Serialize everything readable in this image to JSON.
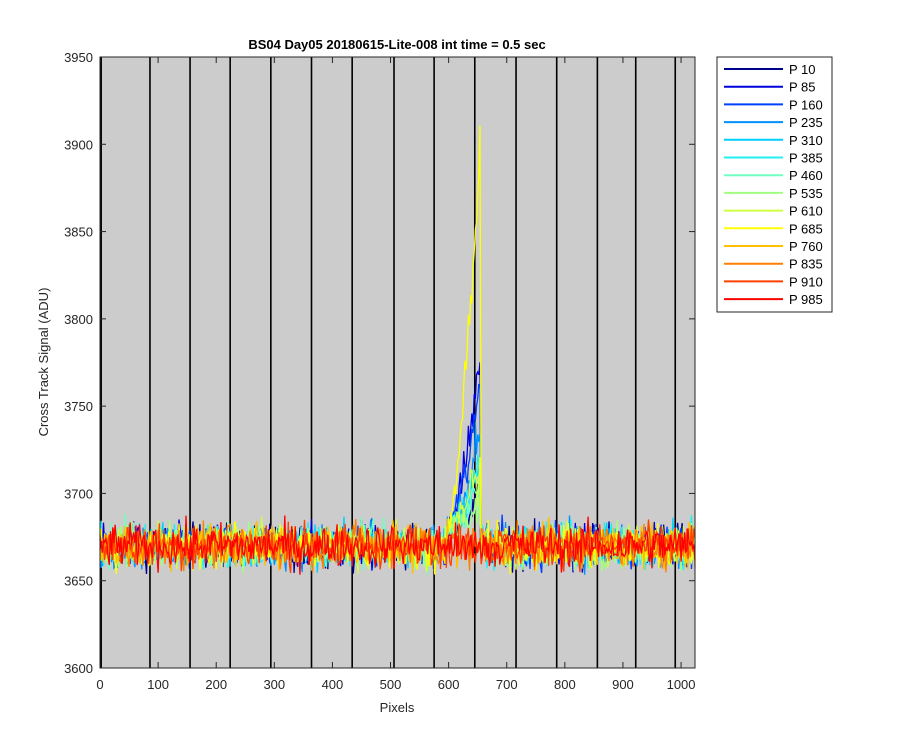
{
  "chart_data": {
    "type": "line",
    "title": "BS04 Day05 20180615-Lite-008 int time = 0.5 sec",
    "xlabel": "Pixels",
    "ylabel": "Cross Track Signal (ADU)",
    "xlim": [
      0,
      1024
    ],
    "ylim": [
      3600,
      3950
    ],
    "x_ticks": [
      0,
      100,
      200,
      300,
      400,
      500,
      600,
      700,
      800,
      900,
      1000
    ],
    "y_ticks": [
      3600,
      3650,
      3700,
      3750,
      3800,
      3850,
      3900,
      3950
    ],
    "x_tick_labels": [
      "0",
      "100",
      "200",
      "300",
      "400",
      "500",
      "600",
      "700",
      "800",
      "900",
      "1000"
    ],
    "y_tick_labels": [
      "3600",
      "3650",
      "3700",
      "3750",
      "3800",
      "3850",
      "3900",
      "3950"
    ],
    "plot_background": "#cccccc",
    "vertical_lines_x": [
      2,
      86,
      155,
      224,
      294,
      364,
      434,
      506,
      575,
      645,
      716,
      786,
      856,
      922,
      990
    ],
    "baseline_mean": 3670,
    "baseline_noise": 12,
    "legend_position": "outside-right-top",
    "series": [
      {
        "name": "P 10",
        "color": "#00008f",
        "peak": 3700
      },
      {
        "name": "P 85",
        "color": "#0000df",
        "peak": 3778
      },
      {
        "name": "P 160",
        "color": "#0040ff",
        "peak": 3760
      },
      {
        "name": "P 235",
        "color": "#0090ff",
        "peak": 3735
      },
      {
        "name": "P 310",
        "color": "#00cfff",
        "peak": 3720
      },
      {
        "name": "P 385",
        "color": "#20f0f0",
        "peak": 3710
      },
      {
        "name": "P 460",
        "color": "#70ffc0",
        "peak": 3700
      },
      {
        "name": "P 535",
        "color": "#a0ff80",
        "peak": 3695
      },
      {
        "name": "P 610",
        "color": "#d0ff40",
        "peak": 3715
      },
      {
        "name": "P 685",
        "color": "#ffff00",
        "peak": 3902
      },
      {
        "name": "P 760",
        "color": "#ffc000",
        "peak": 3672
      },
      {
        "name": "P 835",
        "color": "#ff8000",
        "peak": 3672
      },
      {
        "name": "P 910",
        "color": "#ff4000",
        "peak": 3672
      },
      {
        "name": "P 985",
        "color": "#ff0000",
        "peak": 3672
      }
    ],
    "feature": {
      "x_start": 597,
      "x_end": 655
    }
  }
}
